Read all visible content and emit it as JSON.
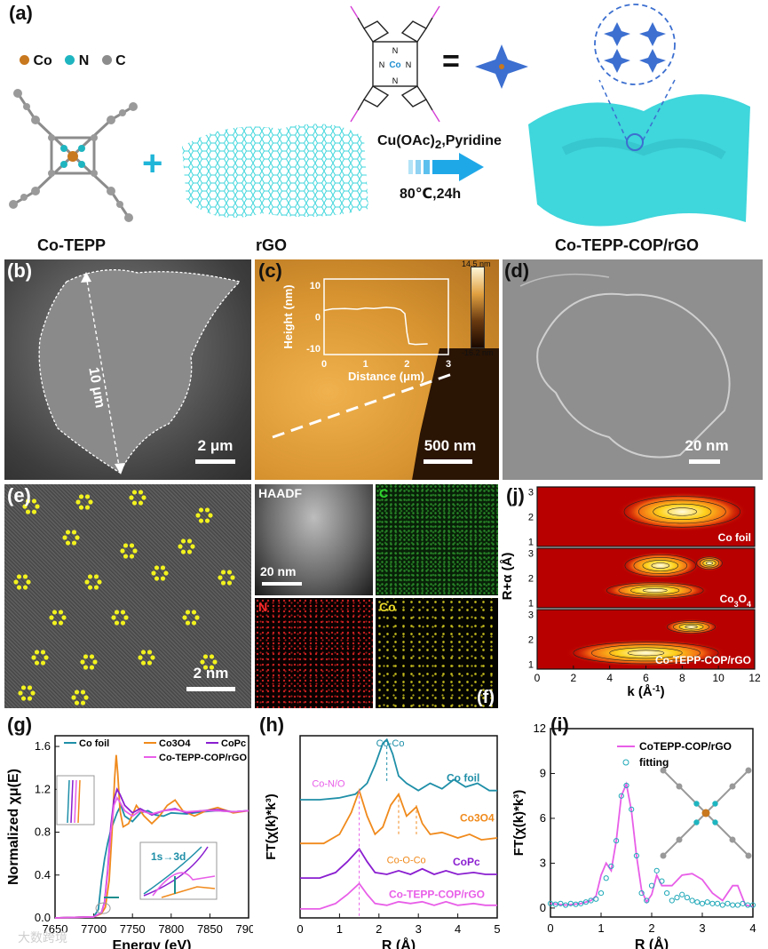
{
  "panel_labels": {
    "a": "(a)",
    "b": "(b)",
    "c": "(c)",
    "d": "(d)",
    "e": "(e)",
    "f": "(f)",
    "g": "(g)",
    "h": "(h)",
    "i": "(i)",
    "j": "(j)"
  },
  "panel_a": {
    "legend": [
      {
        "label": "Co",
        "color": "#c8781e"
      },
      {
        "label": "N",
        "color": "#1fb5c0"
      },
      {
        "label": "C",
        "color": "#8c8c8c"
      }
    ],
    "label_co_tepp": "Co-TEPP",
    "label_rgo": "rGO",
    "label_product": "Co-TEPP-COP/rGO",
    "reagent": "Cu(OAc)",
    "reagent_sub": "2",
    "reagent_rest": ",Pyridine",
    "condition": "80℃,24h",
    "equals": "=",
    "plus": "+",
    "colors": {
      "cyan": "#3fd6dc",
      "blue": "#3c6fd0",
      "molecule_pink": "#d63fd6"
    }
  },
  "panel_b": {
    "scale_label": "2 μm",
    "length_label": "10 μm"
  },
  "panel_c": {
    "scale_label": "500 nm",
    "colorbar_max": "14.5 nm",
    "colorbar_min": "-16.2 nm",
    "inset": {
      "xlabel": "Distance (μm)",
      "ylabel": "Height (nm)",
      "xticks": [
        "0",
        "1",
        "2",
        "3"
      ],
      "yticks": [
        "10",
        "0",
        "-10"
      ],
      "profile_x": [
        0,
        0.2,
        0.5,
        0.8,
        1.0,
        1.2,
        1.5,
        1.7,
        1.85,
        1.95,
        2.0,
        2.05,
        2.2,
        2.5
      ],
      "profile_y": [
        2,
        2.5,
        2.6,
        2.4,
        2.8,
        2.6,
        3.0,
        2.8,
        2.2,
        1.0,
        -5,
        -8.5,
        -8.8,
        -8.6
      ]
    }
  },
  "panel_d": {
    "scale_label": "20 nm"
  },
  "panel_e": {
    "scale_label": "2 nm"
  },
  "panel_f": {
    "haadf": "HAADF",
    "scale_label": "20 nm",
    "c": "C",
    "n": "N",
    "co": "Co"
  },
  "panel_j": {
    "xlabel": "k (Å",
    "xlabel_sup": "-1",
    "xlabel_end": ")",
    "ylabel": "R+α (Å)",
    "xticks": [
      "0",
      "2",
      "4",
      "6",
      "8",
      "10",
      "12"
    ],
    "yticks": [
      "1",
      "2",
      "3"
    ],
    "maps": [
      "Co foil",
      "Co3O4",
      "Co-TEPP-COP/rGO"
    ]
  },
  "chart_data": [
    {
      "id": "g",
      "type": "line",
      "xlabel": "Energy (eV)",
      "ylabel": "Normalized χμ(E)",
      "xlim": [
        7650,
        7900
      ],
      "ylim": [
        0,
        1.7
      ],
      "xticks": [
        7650,
        7700,
        7750,
        7800,
        7850,
        7900
      ],
      "yticks": [
        0.0,
        0.4,
        0.8,
        1.2,
        1.6
      ],
      "inset_label": "1s→3d",
      "series": [
        {
          "name": "Co foil",
          "color": "#1f8fa8",
          "x": [
            7650,
            7700,
            7706,
            7710,
            7714,
            7718,
            7722,
            7726,
            7730,
            7735,
            7740,
            7750,
            7760,
            7770,
            7780,
            7790,
            7800,
            7820,
            7840,
            7860,
            7880,
            7900
          ],
          "y": [
            0.0,
            0.01,
            0.08,
            0.35,
            0.55,
            0.7,
            0.82,
            0.9,
            0.98,
            1.05,
            0.95,
            0.9,
            0.98,
            1.0,
            0.96,
            0.95,
            0.98,
            0.97,
            0.99,
            1.0,
            0.99,
            1.0
          ]
        },
        {
          "name": "Co3O4",
          "color": "#f08a1c",
          "x": [
            7650,
            7700,
            7710,
            7715,
            7720,
            7724,
            7727,
            7729,
            7731,
            7734,
            7738,
            7745,
            7755,
            7765,
            7775,
            7785,
            7795,
            7805,
            7815,
            7830,
            7845,
            7860,
            7880,
            7900
          ],
          "y": [
            0.0,
            0.01,
            0.04,
            0.1,
            0.35,
            0.85,
            1.3,
            1.52,
            1.35,
            1.0,
            0.85,
            0.88,
            1.05,
            0.95,
            0.88,
            0.95,
            1.05,
            1.1,
            1.0,
            0.95,
            1.0,
            1.03,
            0.98,
            1.0
          ]
        },
        {
          "name": "CoPc",
          "color": "#8a1ed0",
          "x": [
            7650,
            7700,
            7710,
            7714,
            7718,
            7722,
            7726,
            7730,
            7734,
            7740,
            7750,
            7760,
            7775,
            7790,
            7805,
            7820,
            7840,
            7860,
            7880,
            7900
          ],
          "y": [
            0.0,
            0.01,
            0.05,
            0.15,
            0.45,
            0.85,
            1.1,
            1.2,
            1.15,
            1.05,
            0.98,
            1.02,
            0.96,
            1.0,
            1.02,
            0.98,
            1.0,
            1.01,
            0.99,
            1.0
          ]
        },
        {
          "name": "Co-TEPP-COP/rGO",
          "color": "#e85ee8",
          "x": [
            7650,
            7700,
            7710,
            7714,
            7718,
            7722,
            7726,
            7730,
            7734,
            7740,
            7750,
            7760,
            7775,
            7790,
            7805,
            7820,
            7840,
            7860,
            7880,
            7900
          ],
          "y": [
            0.0,
            0.01,
            0.05,
            0.14,
            0.42,
            0.8,
            1.05,
            1.12,
            1.08,
            1.0,
            0.95,
            1.0,
            0.97,
            1.0,
            1.01,
            0.99,
            1.0,
            1.0,
            0.99,
            1.0
          ]
        }
      ]
    },
    {
      "id": "h",
      "type": "line",
      "xlabel": "R (Å)",
      "ylabel": "FT(χ(k)*k³)",
      "xlim": [
        0,
        5
      ],
      "xticks": [
        0,
        1,
        2,
        3,
        4,
        5
      ],
      "annotations": [
        "Co-Co",
        "Co-N/O",
        "Co-O-Co"
      ],
      "series": [
        {
          "name": "Co foil",
          "color": "#1f8fa8",
          "offset": 3.0,
          "x": [
            0,
            0.5,
            1.0,
            1.4,
            1.7,
            1.9,
            2.1,
            2.2,
            2.35,
            2.5,
            2.7,
            3.0,
            3.3,
            3.6,
            3.9,
            4.2,
            4.5,
            4.8,
            5.0
          ],
          "y": [
            0.05,
            0.05,
            0.1,
            0.2,
            0.5,
            1.0,
            1.6,
            1.7,
            1.3,
            0.7,
            0.5,
            0.3,
            0.5,
            0.35,
            0.6,
            0.4,
            0.5,
            0.3,
            0.3
          ]
        },
        {
          "name": "Co3O4",
          "color": "#f08a1c",
          "offset": 1.8,
          "x": [
            0,
            0.6,
            1.0,
            1.3,
            1.5,
            1.7,
            1.9,
            2.1,
            2.3,
            2.5,
            2.7,
            2.8,
            2.95,
            3.1,
            3.3,
            3.6,
            4.0,
            4.3,
            4.6,
            5.0
          ],
          "y": [
            0.05,
            0.05,
            0.3,
            0.9,
            1.5,
            0.8,
            0.3,
            0.5,
            1.1,
            1.4,
            0.8,
            0.9,
            1.05,
            0.6,
            0.3,
            0.35,
            0.2,
            0.3,
            0.15,
            0.2
          ]
        },
        {
          "name": "CoPc",
          "color": "#8a1ed0",
          "offset": 0.85,
          "x": [
            0,
            0.5,
            0.9,
            1.2,
            1.5,
            1.7,
            1.9,
            2.2,
            2.5,
            2.8,
            3.1,
            3.4,
            3.7,
            4.0,
            4.4,
            4.7,
            5.0
          ],
          "y": [
            0.05,
            0.05,
            0.2,
            0.5,
            0.85,
            0.5,
            0.2,
            0.15,
            0.25,
            0.15,
            0.3,
            0.15,
            0.25,
            0.15,
            0.2,
            0.15,
            0.15
          ]
        },
        {
          "name": "Co-TEPP-COP/rGO",
          "color": "#e85ee8",
          "offset": 0.0,
          "x": [
            0,
            0.5,
            0.9,
            1.2,
            1.5,
            1.7,
            1.9,
            2.2,
            2.5,
            2.8,
            3.1,
            3.4,
            3.7,
            4.0,
            4.4,
            4.7,
            5.0
          ],
          "y": [
            0.05,
            0.05,
            0.2,
            0.45,
            0.75,
            0.45,
            0.2,
            0.15,
            0.25,
            0.2,
            0.25,
            0.15,
            0.25,
            0.15,
            0.2,
            0.15,
            0.15
          ]
        }
      ]
    },
    {
      "id": "i",
      "type": "line",
      "xlabel": "R (Å)",
      "ylabel": "FT(χ(k)*k³)",
      "xlim": [
        0,
        4
      ],
      "ylim": [
        -0.6,
        12
      ],
      "xticks": [
        0,
        1,
        2,
        3,
        4
      ],
      "yticks": [
        0,
        3,
        6,
        9,
        12
      ],
      "series": [
        {
          "name": "CoTEPP-COP/rGO",
          "color": "#e85ee8",
          "x": [
            0,
            0.3,
            0.6,
            0.8,
            0.9,
            1.0,
            1.1,
            1.2,
            1.3,
            1.4,
            1.5,
            1.6,
            1.7,
            1.8,
            1.9,
            2.0,
            2.1,
            2.2,
            2.4,
            2.6,
            2.8,
            3.0,
            3.2,
            3.4,
            3.6,
            3.7,
            3.85,
            4.0
          ],
          "y": [
            0.3,
            0.2,
            0.3,
            0.5,
            0.8,
            2.2,
            3.0,
            2.5,
            4.5,
            7.5,
            8.3,
            6.5,
            3.5,
            1.2,
            0.4,
            0.9,
            2.2,
            1.5,
            1.5,
            2.2,
            2.3,
            1.9,
            1.0,
            0.5,
            1.5,
            1.5,
            0.2,
            0.1
          ]
        },
        {
          "name": "fitting",
          "color": "#1fa8b8",
          "marker": "circle",
          "x": [
            0,
            0.1,
            0.2,
            0.3,
            0.4,
            0.5,
            0.6,
            0.7,
            0.8,
            0.9,
            1.0,
            1.1,
            1.2,
            1.3,
            1.4,
            1.5,
            1.6,
            1.7,
            1.8,
            1.9,
            2.0,
            2.1,
            2.2,
            2.3,
            2.4,
            2.5,
            2.6,
            2.7,
            2.8,
            2.9,
            3.0,
            3.1,
            3.2,
            3.3,
            3.4,
            3.5,
            3.6,
            3.7,
            3.8,
            3.9,
            4.0
          ],
          "y": [
            0.3,
            0.25,
            0.3,
            0.2,
            0.3,
            0.25,
            0.3,
            0.4,
            0.5,
            0.6,
            1.0,
            2.0,
            2.8,
            4.5,
            7.5,
            8.2,
            6.6,
            3.5,
            1.0,
            0.5,
            1.5,
            2.5,
            1.8,
            1.0,
            0.5,
            0.7,
            0.9,
            0.7,
            0.5,
            0.4,
            0.3,
            0.4,
            0.3,
            0.3,
            0.2,
            0.3,
            0.2,
            0.2,
            0.3,
            0.2,
            0.2
          ]
        }
      ]
    }
  ],
  "watermark": "大数跨境"
}
